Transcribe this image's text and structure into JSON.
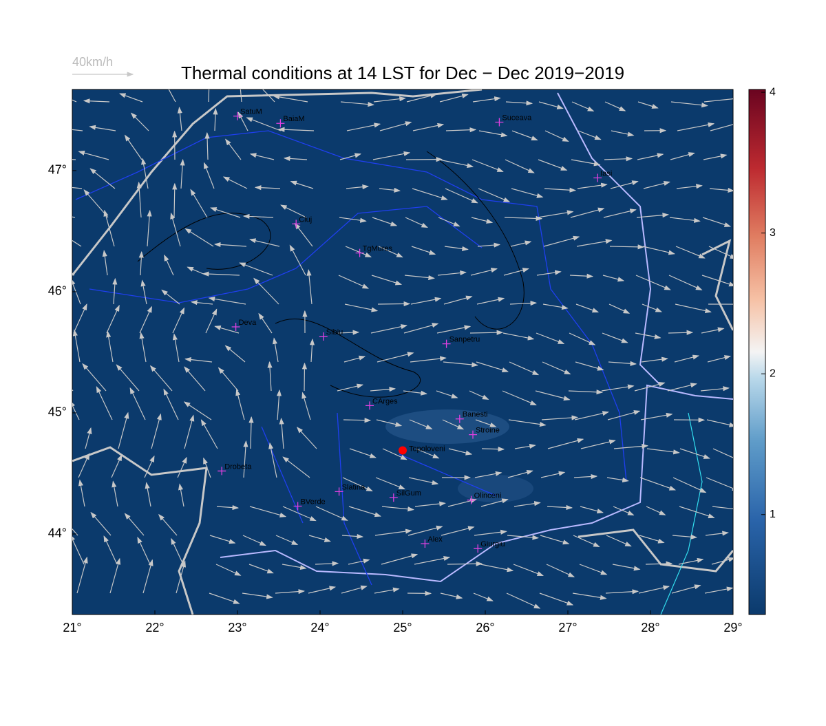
{
  "map": {
    "title": "Thermal conditions at 14 LST for Dec − Dec  2019−2019",
    "wind_scale_label": "40km/h",
    "xlim": [
      21,
      29
    ],
    "ylim": [
      43.335,
      47.67
    ],
    "xticks": [
      {
        "value": 21,
        "label": "21°"
      },
      {
        "value": 22,
        "label": "22°"
      },
      {
        "value": 23,
        "label": "23°"
      },
      {
        "value": 24,
        "label": "24°"
      },
      {
        "value": 25,
        "label": "25°"
      },
      {
        "value": 26,
        "label": "26°"
      },
      {
        "value": 27,
        "label": "27°"
      },
      {
        "value": 28,
        "label": "28°"
      },
      {
        "value": 29,
        "label": "29°"
      }
    ],
    "yticks": [
      {
        "value": 44,
        "label": "44°"
      },
      {
        "value": 45,
        "label": "45°"
      },
      {
        "value": 46,
        "label": "46°"
      },
      {
        "value": 47,
        "label": "47°"
      }
    ],
    "cities": [
      {
        "name": "SatuM",
        "lon": 23.0,
        "lat": 47.45
      },
      {
        "name": "BaiaM",
        "lon": 23.52,
        "lat": 47.39
      },
      {
        "name": "Suceava",
        "lon": 26.17,
        "lat": 47.4
      },
      {
        "name": "Iasi",
        "lon": 27.36,
        "lat": 46.94
      },
      {
        "name": "Cluj",
        "lon": 23.71,
        "lat": 46.56
      },
      {
        "name": "TgMures",
        "lon": 24.48,
        "lat": 46.32
      },
      {
        "name": "Deva",
        "lon": 22.98,
        "lat": 45.71
      },
      {
        "name": "Sibiu",
        "lon": 24.04,
        "lat": 45.63
      },
      {
        "name": "Sanpetru",
        "lon": 25.53,
        "lat": 45.57
      },
      {
        "name": "CArges",
        "lon": 24.6,
        "lat": 45.06
      },
      {
        "name": "Banesti",
        "lon": 25.69,
        "lat": 44.95
      },
      {
        "name": "Stroine",
        "lon": 25.85,
        "lat": 44.82
      },
      {
        "name": "Drobeta",
        "lon": 22.81,
        "lat": 44.52
      },
      {
        "name": "Slatina",
        "lon": 24.23,
        "lat": 44.35
      },
      {
        "name": "SilGum",
        "lon": 24.89,
        "lat": 44.3
      },
      {
        "name": "BVerde",
        "lon": 23.73,
        "lat": 44.23
      },
      {
        "name": "Olinceni",
        "lon": 25.83,
        "lat": 44.28
      },
      {
        "name": "Alex",
        "lon": 25.27,
        "lat": 43.92
      },
      {
        "name": "Giurgiu",
        "lon": 25.91,
        "lat": 43.88
      }
    ],
    "highlight": {
      "name": "Topoloveni",
      "lon": 25.0,
      "lat": 44.69
    },
    "colorbar": {
      "lim": [
        0.29,
        4.02
      ],
      "ticks": [
        1,
        2,
        3,
        4
      ]
    }
  }
}
